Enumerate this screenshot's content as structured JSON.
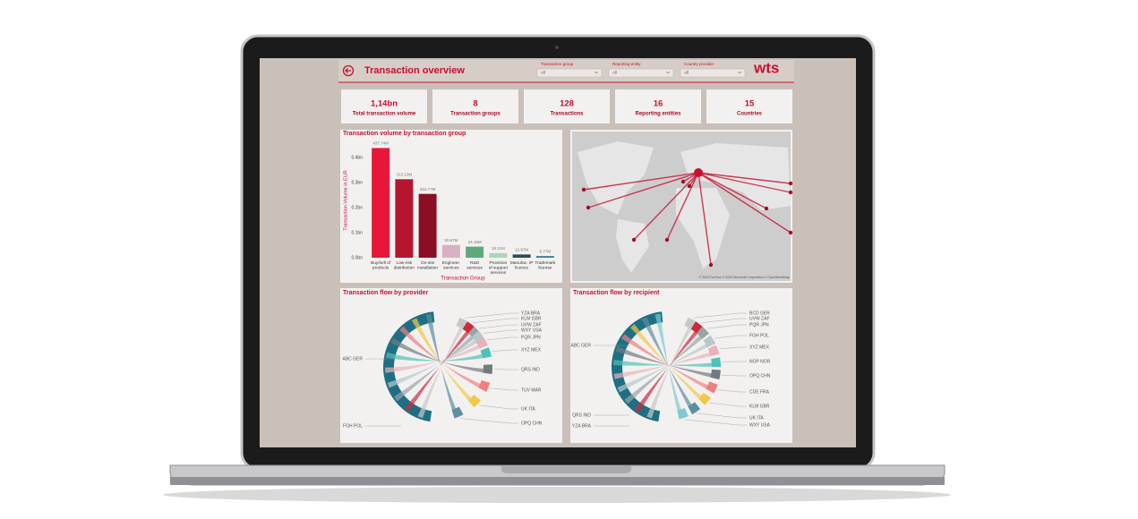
{
  "header": {
    "title": "Transaction overview",
    "logo": "wts",
    "filters": [
      {
        "label": "Transaction group",
        "value": "All"
      },
      {
        "label": "Reporting entity",
        "value": "All"
      },
      {
        "label": "Country provider",
        "value": "All"
      }
    ]
  },
  "kpis": [
    {
      "value": "1,14bn",
      "label": "Total transaction volume"
    },
    {
      "value": 8,
      "label": "Transaction groups"
    },
    {
      "value": 128,
      "label": "Transactions"
    },
    {
      "value": 16,
      "label": "Reporting entities"
    },
    {
      "value": 15,
      "label": "Countries"
    }
  ],
  "chart_data": {
    "type": "bar",
    "title": "Transaction volume by transaction group",
    "y_label": "Transaction Volume in EUR",
    "x_label": "Transaction Group",
    "categories": [
      "Buy/sell of products",
      "Low-risk distribution",
      "On-site installation",
      "Engineer. services",
      "R&D services",
      "Provision of support services",
      "Manufac. IP licence",
      "Trademark license"
    ],
    "values": [
      0.43774,
      0.31313,
      0.25477,
      0.05067,
      0.04415,
      0.01811,
      0.01297,
      0.00677
    ],
    "value_labels": [
      "437.74M",
      "313.13M",
      "254.77M",
      "50.67M",
      "44.15M",
      "18.11M",
      "12.97M",
      "6.77M"
    ],
    "colors": [
      "#e8173a",
      "#b5152e",
      "#8b0e23",
      "#d8b0c4",
      "#5fa87a",
      "#aad6b9",
      "#2e4a56",
      "#3a7ca5"
    ],
    "ylim": [
      0,
      0.45
    ],
    "yticks": [
      {
        "value": 0,
        "label": "0.0bn"
      },
      {
        "value": 0.1,
        "label": "0.1bn"
      },
      {
        "value": 0.2,
        "label": "0.2bn"
      },
      {
        "value": 0.3,
        "label": "0.3bn"
      },
      {
        "value": 0.4,
        "label": "0.4bn"
      }
    ]
  },
  "map": {
    "attribution": "© 2023 TomTom © 2023 Microsoft Corporation © OpenStreetMap"
  },
  "provider_flow": {
    "title": "Transaction flow by provider",
    "labels": [
      "YZA BRA",
      "KLM GBR",
      "UVW ZAF",
      "WXY USA",
      "PQR JPN",
      "XYZ MEX",
      "QRS IND",
      "TUV MAR",
      "UK ITA",
      "OPQ CHN",
      "ABC GER",
      "FGH POL"
    ]
  },
  "recipient_flow": {
    "title": "Transaction flow by recipient",
    "labels": [
      "BCD GER",
      "UVW ZAF",
      "PQR JPN",
      "FGH POL",
      "XYZ MEX",
      "NOP NOR",
      "OPQ CHN",
      "CDE FRA",
      "KLM GBR",
      "UK ITA",
      "WXY USA",
      "ABC GER",
      "QRS IND",
      "YZA BRA"
    ]
  }
}
